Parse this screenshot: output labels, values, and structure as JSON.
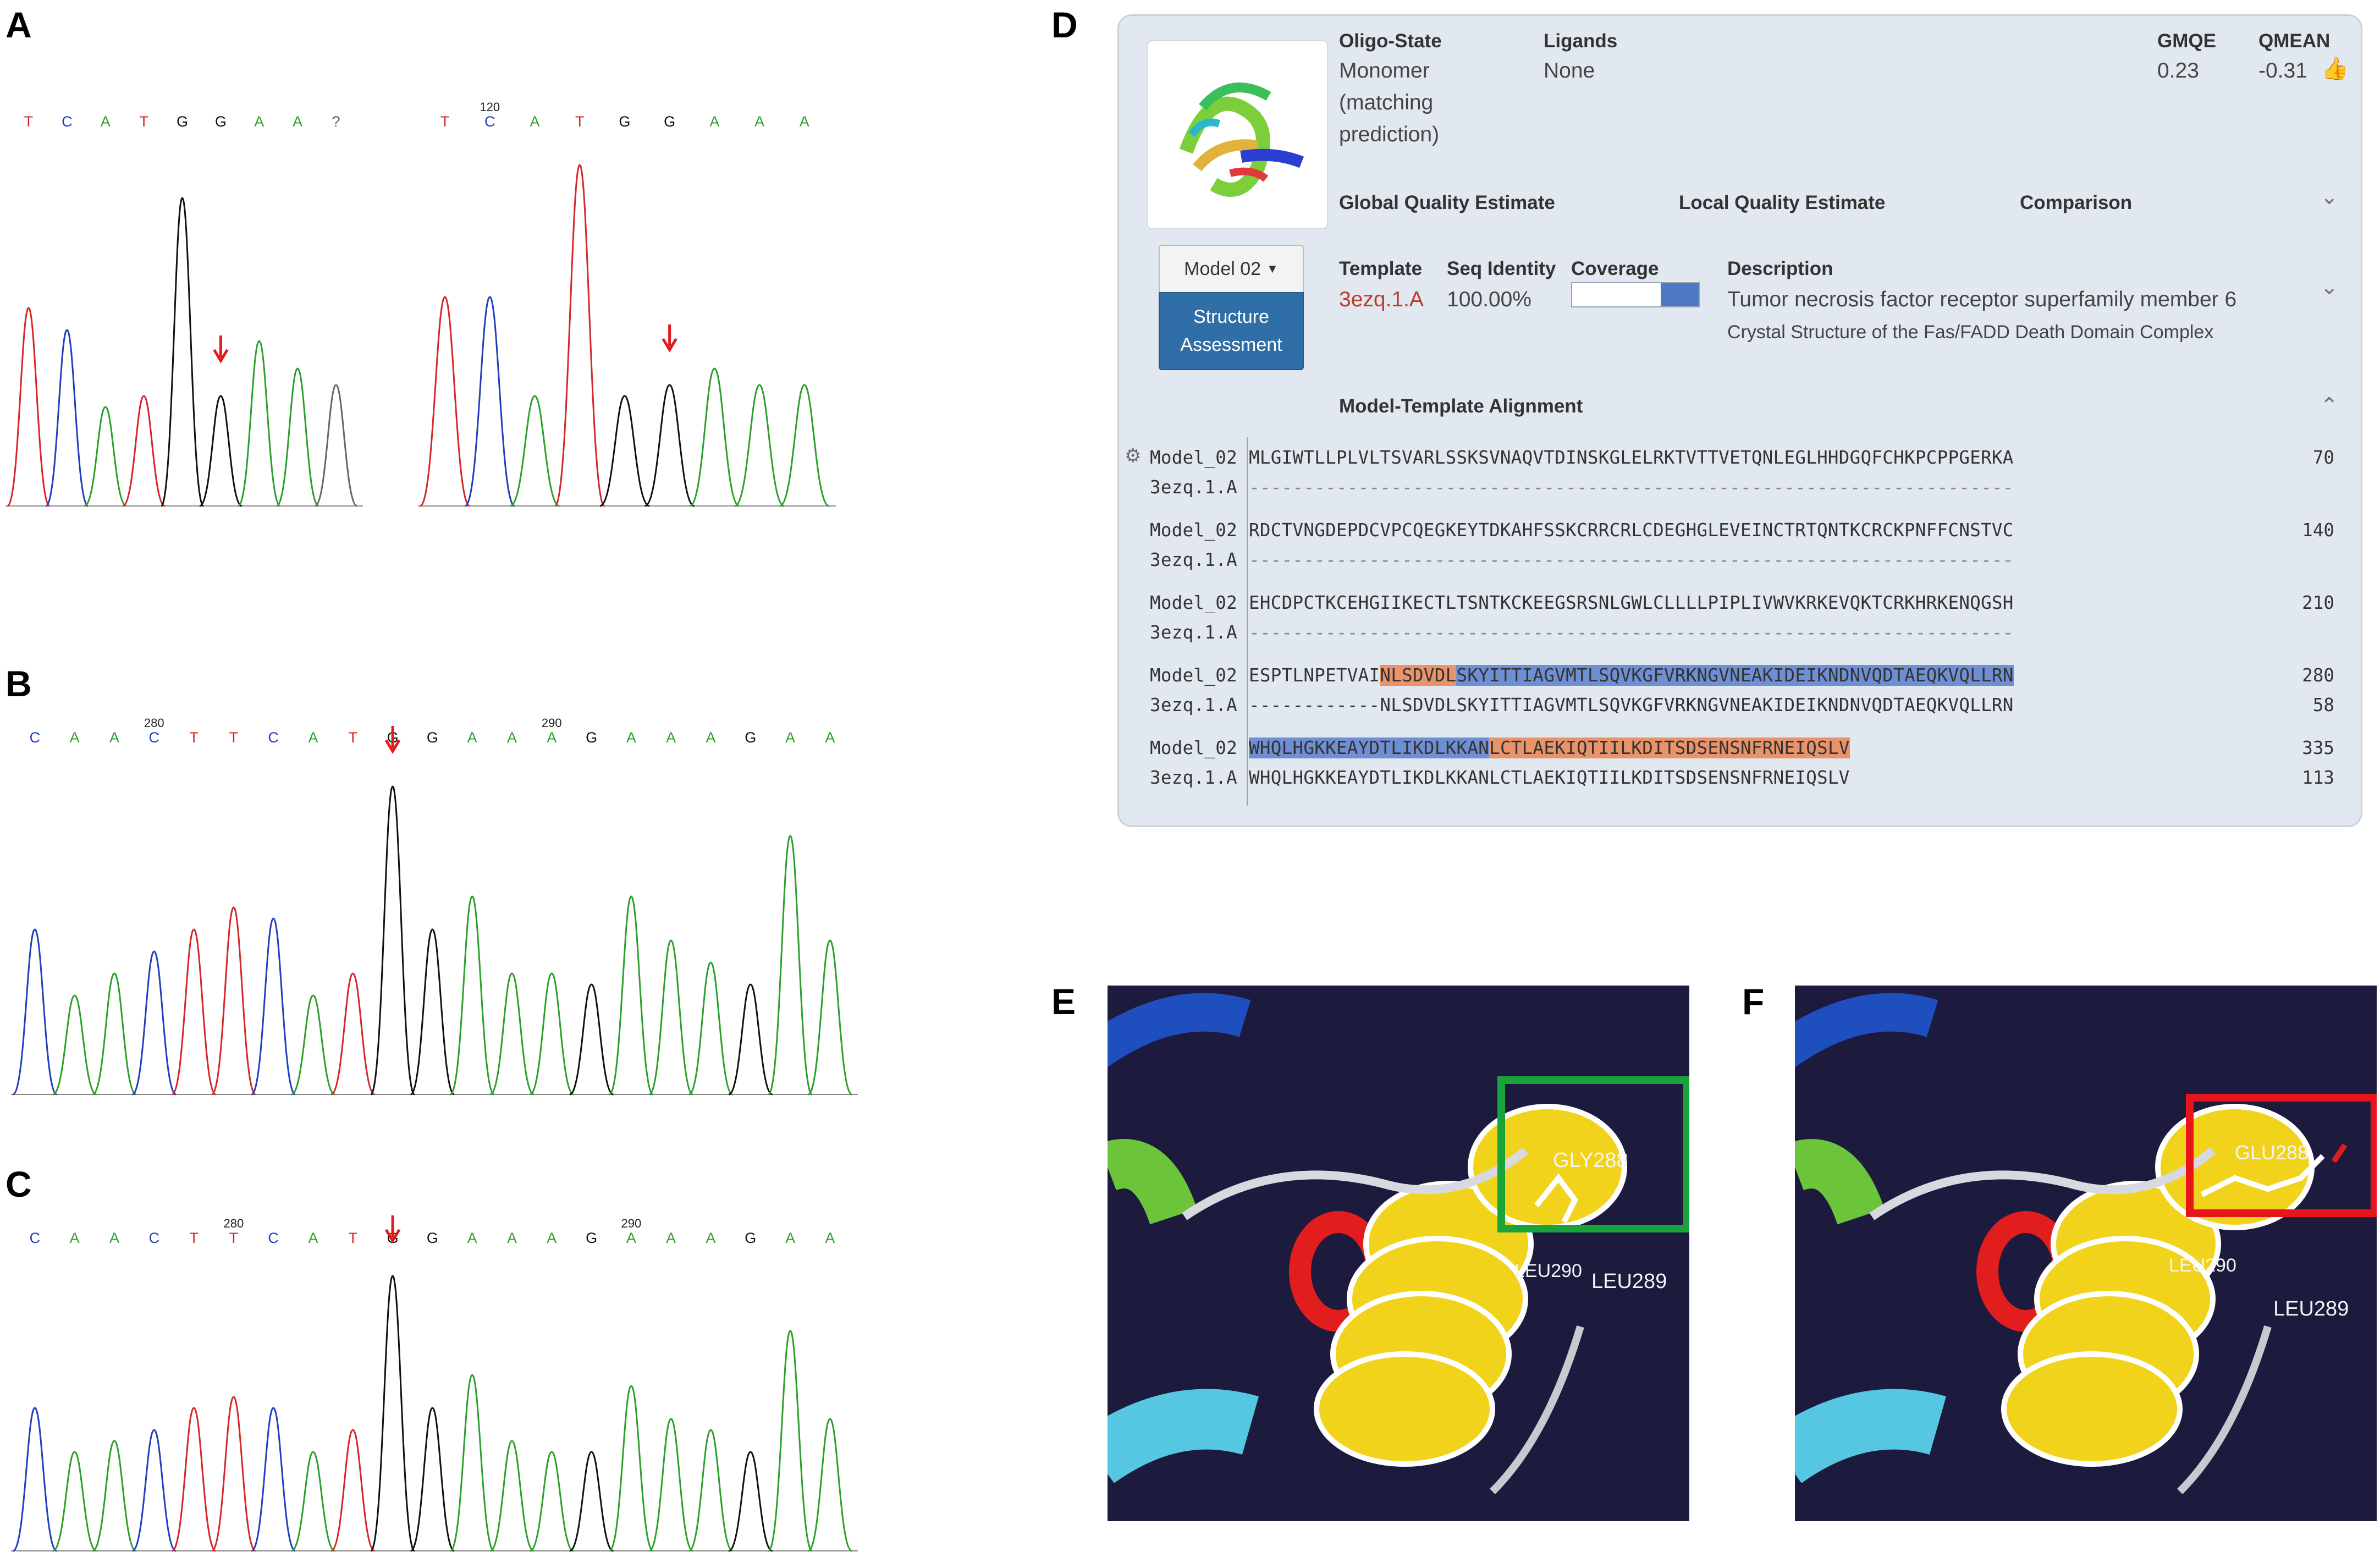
{
  "figure": {
    "labels": {
      "A": "A",
      "B": "B",
      "C": "C",
      "D": "D",
      "E": "E",
      "F": "F"
    },
    "colors": {
      "A": "#2ca02c",
      "C": "#1f3fbf",
      "G": "#111111",
      "T": "#d62728",
      "arrow": "#e31a1c",
      "green_box": "#1aa33a",
      "red_box": "#e8141c"
    }
  },
  "panelA": {
    "left": {
      "bases": [
        "T",
        "C",
        "A",
        "T",
        "G",
        "G",
        "A",
        "A",
        "?"
      ],
      "position_label": ""
    },
    "right": {
      "bases": [
        "T",
        "C",
        "A",
        "T",
        "G",
        "G",
        "A",
        "A",
        "A"
      ],
      "position_label": "120"
    }
  },
  "panelB": {
    "bases": [
      "C",
      "A",
      "A",
      "C",
      "T",
      "T",
      "C",
      "A",
      "T",
      "G",
      "G",
      "A",
      "A",
      "A",
      "G",
      "A",
      "A",
      "A",
      "G",
      "A",
      "A"
    ],
    "position_labels": [
      "280",
      "290"
    ]
  },
  "panelC": {
    "bases": [
      "C",
      "A",
      "A",
      "C",
      "T",
      "T",
      "C",
      "A",
      "T",
      "G",
      "G",
      "A",
      "A",
      "A",
      "G",
      "A",
      "A",
      "A",
      "G",
      "A",
      "A"
    ],
    "position_labels": [
      "280",
      "290"
    ]
  },
  "panelD": {
    "oligo_state_header": "Oligo-State",
    "oligo_state_lines": [
      "Monomer",
      "(matching",
      "prediction)"
    ],
    "ligands_header": "Ligands",
    "ligands_value": "None",
    "gmqe_header": "GMQE",
    "gmqe_value": "0.23",
    "qmean_header": "QMEAN",
    "qmean_value": "-0.31",
    "tabs": [
      "Global Quality Estimate",
      "Local Quality Estimate",
      "Comparison"
    ],
    "model_button": "Model 02",
    "structure_button_lines": [
      "Structure",
      "Assessment"
    ],
    "template_header": "Template",
    "template_value": "3ezq.1.A",
    "seq_identity_header": "Seq Identity",
    "seq_identity_value": "100.00%",
    "coverage_header": "Coverage",
    "coverage_fraction": 0.3,
    "description_header": "Description",
    "description_line1": "Tumor necrosis factor receptor superfamily member 6",
    "description_line2": "Crystal Structure of the Fas/FADD Death Domain Complex",
    "alignment_header": "Model-Template Alignment",
    "alignment": [
      {
        "model_label": "Model_02",
        "model_seq": "MLGIWTLLPLVLTSVARLSSKSVNAQVTDINSKGLELRKTVTTVETQNLEGLHHDGQFCHKPCPPGERKA",
        "template_label": "3ezq.1.A",
        "template_seq": "----------------------------------------------------------------------",
        "end": "70"
      },
      {
        "model_label": "Model_02",
        "model_seq": "RDCTVNGDEPDCVPCQEGKEYTDKAHFSSKCRRCRLCDEGHGLEVEINCTRTQNTKCRCKPNFFCNSTVC",
        "template_label": "3ezq.1.A",
        "template_seq": "----------------------------------------------------------------------",
        "end": "140"
      },
      {
        "model_label": "Model_02",
        "model_seq": "EHCDPCTKCEHGIIKECTLTSNTKCKEEGSRSNLGWLCLLLLPIPLIVWVKRKEVQKTCRKHRKENQGSH",
        "template_label": "3ezq.1.A",
        "template_seq": "----------------------------------------------------------------------",
        "end": "210"
      },
      {
        "model_label": "Model_02",
        "model_seq_plain": "ESPTLNPETVAI",
        "model_seq_o1": "NLSDVDL",
        "model_seq_b1": "SKYITTIAGVMTLSQVKGFVRKNGVNEAKIDEIKNDNVQ",
        "model_seq_o2": "DTAEQKVQLLRN",
        "template_label": "3ezq.1.A",
        "template_seq": "------------NLSDVDLSKYITTIAGVMTLSQVKGFVRKNGVNEAKIDEIKNDNVQDTAEQKVQLLRN",
        "end": "280",
        "template_end": "58"
      },
      {
        "model_label": "Model_02",
        "model_seq_b1": "WHQLHGKKEAYDTLIKDLKKAN",
        "model_seq_o1": "LCTLAEKIQTIILKDITSDSENSNFRNEIQSLV",
        "template_label": "3ezq.1.A",
        "template_seq": "WHQLHGKKEAYDTLIKDLKKANLCTLAEKIQTIILKDITSDSENSNFRNEIQSLV",
        "end": "335",
        "template_end": "113"
      }
    ]
  },
  "panelE": {
    "labels": [
      "GLY288",
      "LEU290",
      "LEU289"
    ]
  },
  "panelF": {
    "labels": [
      "GLU288",
      "LEU290",
      "LEU289"
    ]
  }
}
